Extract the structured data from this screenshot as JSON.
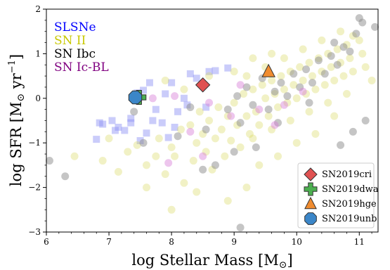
{
  "chart_data": {
    "type": "scatter",
    "xlabel": "log Stellar Mass [M",
    "xlabel_symbol": "⊙",
    "xlabel_suffix": "]",
    "ylabel": "log SFR [M",
    "ylabel_symbol": "⊙",
    "ylabel_unit": " yr",
    "ylabel_exp": "−1",
    "ylabel_suffix": "]",
    "xlim": [
      6,
      11.3
    ],
    "ylim": [
      -3,
      2
    ],
    "xticks": [
      6,
      7,
      8,
      9,
      10,
      11
    ],
    "yticks": [
      -3,
      -2,
      -1,
      0,
      1,
      2
    ],
    "xtick_labels": [
      "6",
      "7",
      "8",
      "9",
      "10",
      "11"
    ],
    "ytick_labels": [
      "−3",
      "−2",
      "−1",
      "0",
      "1",
      "2"
    ],
    "grid": false,
    "class_key": [
      {
        "label": "SLSNe",
        "color": "#0000ff"
      },
      {
        "label": "SN II",
        "color": "#c8c800"
      },
      {
        "label": "SN Ibc",
        "color": "#000000"
      },
      {
        "label": "SN Ic-BL",
        "color": "#800080"
      }
    ],
    "legend_position": "lower right",
    "series": [
      {
        "name": "SLSNe",
        "marker": "square",
        "color": "#8a8ff5",
        "alpha": 0.45,
        "points": [
          [
            6.8,
            -0.92
          ],
          [
            6.85,
            -0.55
          ],
          [
            6.9,
            -0.58
          ],
          [
            7.05,
            -0.5
          ],
          [
            7.15,
            -0.65
          ],
          [
            7.25,
            -0.72
          ],
          [
            7.35,
            -0.45
          ],
          [
            7.5,
            -0.95
          ],
          [
            7.6,
            -0.78
          ],
          [
            7.7,
            -0.5
          ],
          [
            7.85,
            -0.55
          ],
          [
            7.95,
            -0.88
          ],
          [
            7.45,
            0.12
          ],
          [
            7.55,
            0.18
          ],
          [
            7.65,
            0.35
          ],
          [
            7.9,
            0.1
          ],
          [
            8.0,
            0.35
          ],
          [
            8.1,
            -0.3
          ],
          [
            8.2,
            0.0
          ],
          [
            8.3,
            0.55
          ],
          [
            8.4,
            0.45
          ],
          [
            8.6,
            0.6
          ],
          [
            8.7,
            0.62
          ],
          [
            8.9,
            0.68
          ],
          [
            8.05,
            -0.65
          ],
          [
            7.35,
            -0.55
          ],
          [
            7.1,
            -0.72
          ],
          [
            8.55,
            -0.2
          ],
          [
            7.75,
            -0.25
          ],
          [
            8.25,
            -0.15
          ]
        ]
      },
      {
        "name": "SN II",
        "marker": "circle",
        "color": "#d6d65a",
        "alpha": 0.35,
        "points": [
          [
            6.45,
            -1.3
          ],
          [
            6.9,
            -1.4
          ],
          [
            7.0,
            -0.9
          ],
          [
            7.15,
            -1.65
          ],
          [
            7.3,
            -1.2
          ],
          [
            7.45,
            -1.05
          ],
          [
            7.6,
            -1.5
          ],
          [
            7.75,
            -1.3
          ],
          [
            7.8,
            -0.9
          ],
          [
            7.9,
            -1.7
          ],
          [
            8.0,
            -1.1
          ],
          [
            8.05,
            -1.3
          ],
          [
            8.15,
            -0.7
          ],
          [
            8.2,
            -1.9
          ],
          [
            8.3,
            -0.6
          ],
          [
            8.35,
            -1.4
          ],
          [
            8.4,
            -1.0
          ],
          [
            8.45,
            -0.3
          ],
          [
            8.5,
            -0.8
          ],
          [
            8.55,
            -1.2
          ],
          [
            8.6,
            -0.5
          ],
          [
            8.65,
            -1.6
          ],
          [
            8.7,
            -0.9
          ],
          [
            8.75,
            -0.2
          ],
          [
            8.8,
            -0.7
          ],
          [
            8.85,
            -1.3
          ],
          [
            8.9,
            -0.4
          ],
          [
            8.95,
            -0.95
          ],
          [
            9.0,
            -0.1
          ],
          [
            9.05,
            -0.6
          ],
          [
            9.1,
            -1.1
          ],
          [
            9.15,
            0.1
          ],
          [
            9.2,
            -0.4
          ],
          [
            9.25,
            -0.8
          ],
          [
            9.3,
            0.2
          ],
          [
            9.35,
            -0.3
          ],
          [
            9.4,
            -0.6
          ],
          [
            9.45,
            0.3
          ],
          [
            9.5,
            0.0
          ],
          [
            9.55,
            -0.4
          ],
          [
            9.6,
            0.4
          ],
          [
            9.65,
            0.1
          ],
          [
            9.7,
            -0.2
          ],
          [
            9.75,
            0.5
          ],
          [
            9.8,
            0.2
          ],
          [
            9.85,
            -0.1
          ],
          [
            9.9,
            0.6
          ],
          [
            9.95,
            0.3
          ],
          [
            10.0,
            0.0
          ],
          [
            10.05,
            0.7
          ],
          [
            10.1,
            0.4
          ],
          [
            10.15,
            0.1
          ],
          [
            10.2,
            0.8
          ],
          [
            10.25,
            0.5
          ],
          [
            10.3,
            0.2
          ],
          [
            10.35,
            0.9
          ],
          [
            10.4,
            0.6
          ],
          [
            10.45,
            0.3
          ],
          [
            10.5,
            1.0
          ],
          [
            10.55,
            0.7
          ],
          [
            10.6,
            0.4
          ],
          [
            10.65,
            1.1
          ],
          [
            10.7,
            0.8
          ],
          [
            10.75,
            0.5
          ],
          [
            10.8,
            1.2
          ],
          [
            10.85,
            0.9
          ],
          [
            10.9,
            0.6
          ],
          [
            11.0,
            1.3
          ],
          [
            11.05,
            1.0
          ],
          [
            11.1,
            0.7
          ],
          [
            9.3,
            -0.9
          ],
          [
            9.6,
            -0.7
          ],
          [
            9.9,
            -0.5
          ],
          [
            10.2,
            -0.3
          ],
          [
            10.5,
            -0.1
          ],
          [
            10.8,
            0.1
          ],
          [
            9.2,
            0.5
          ],
          [
            9.5,
            0.7
          ],
          [
            9.8,
            0.9
          ],
          [
            10.1,
            1.1
          ],
          [
            10.4,
            1.3
          ],
          [
            10.7,
            1.5
          ],
          [
            8.4,
            -2.1
          ],
          [
            8.9,
            -2.3
          ],
          [
            9.2,
            -2.0
          ],
          [
            8.0,
            -2.5
          ],
          [
            7.6,
            -2.0
          ],
          [
            9.4,
            -1.5
          ],
          [
            9.7,
            -1.3
          ],
          [
            10.0,
            -1.0
          ],
          [
            10.3,
            -0.8
          ],
          [
            8.2,
            0.2
          ],
          [
            7.9,
            0.4
          ],
          [
            8.6,
            0.5
          ],
          [
            9.0,
            0.6
          ],
          [
            9.3,
            0.9
          ],
          [
            9.6,
            1.0
          ],
          [
            10.9,
            1.4
          ],
          [
            11.2,
            0.4
          ],
          [
            10.6,
            -0.4
          ]
        ]
      },
      {
        "name": "SN Ibc",
        "marker": "circle",
        "color": "#8c8c8c",
        "alpha": 0.5,
        "points": [
          [
            6.3,
            -1.75
          ],
          [
            6.05,
            -1.4
          ],
          [
            7.4,
            -0.3
          ],
          [
            7.55,
            -1.0
          ],
          [
            8.1,
            -0.85
          ],
          [
            8.3,
            -0.2
          ],
          [
            8.55,
            -0.7
          ],
          [
            8.7,
            -1.5
          ],
          [
            8.9,
            -0.25
          ],
          [
            9.05,
            0.05
          ],
          [
            9.1,
            -0.55
          ],
          [
            9.2,
            0.25
          ],
          [
            9.3,
            -0.15
          ],
          [
            9.35,
            -1.1
          ],
          [
            9.45,
            0.45
          ],
          [
            9.55,
            -0.25
          ],
          [
            9.65,
            0.15
          ],
          [
            9.75,
            0.35
          ],
          [
            9.85,
            0.05
          ],
          [
            9.95,
            0.55
          ],
          [
            10.05,
            0.25
          ],
          [
            10.15,
            0.65
          ],
          [
            10.25,
            0.35
          ],
          [
            10.35,
            0.85
          ],
          [
            10.45,
            0.55
          ],
          [
            10.55,
            0.95
          ],
          [
            10.65,
            0.75
          ],
          [
            10.75,
            1.15
          ],
          [
            10.85,
            1.05
          ],
          [
            10.95,
            1.45
          ],
          [
            11.05,
            1.7
          ],
          [
            11.25,
            1.6
          ],
          [
            11.0,
            1.8
          ],
          [
            10.6,
            1.25
          ],
          [
            10.2,
            -0.1
          ],
          [
            9.7,
            -0.55
          ],
          [
            9.0,
            -1.2
          ],
          [
            8.5,
            -1.6
          ],
          [
            10.9,
            -0.75
          ],
          [
            11.1,
            -0.5
          ],
          [
            10.7,
            -1.05
          ],
          [
            9.1,
            -2.9
          ]
        ]
      },
      {
        "name": "SN Ic-BL",
        "marker": "circle",
        "color": "#d77fd7",
        "alpha": 0.45,
        "points": [
          [
            7.7,
            0.0
          ],
          [
            8.05,
            0.05
          ],
          [
            8.3,
            -0.75
          ],
          [
            8.5,
            -1.3
          ],
          [
            8.95,
            -0.4
          ],
          [
            9.4,
            -0.25
          ],
          [
            9.8,
            -0.15
          ],
          [
            10.1,
            0.15
          ],
          [
            7.95,
            -1.45
          ],
          [
            8.6,
            -0.1
          ],
          [
            9.1,
            0.3
          ],
          [
            9.65,
            -0.6
          ]
        ]
      }
    ],
    "highlighted": [
      {
        "name": "SN2019cri",
        "marker": "diamond",
        "color": "#e05252",
        "x": 8.5,
        "y": 0.3
      },
      {
        "name": "SN2019dwa",
        "marker": "plus",
        "color": "#4caf50",
        "x": 7.48,
        "y": 0.02
      },
      {
        "name": "SN2019hge",
        "marker": "triangle",
        "color": "#f08c30",
        "x": 9.55,
        "y": 0.6
      },
      {
        "name": "SN2019unb",
        "marker": "octagon",
        "color": "#3b86c8",
        "x": 7.42,
        "y": 0.02
      }
    ]
  }
}
